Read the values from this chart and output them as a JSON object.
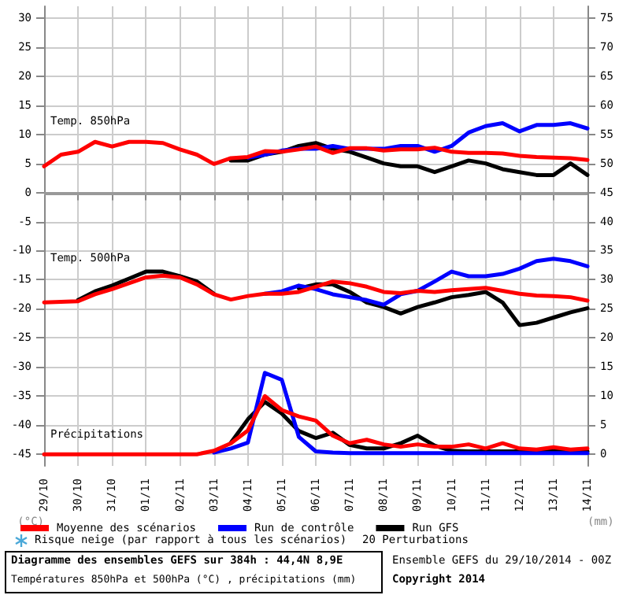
{
  "chart_data": {
    "type": "line",
    "title": "Diagramme des ensembles GEFS sur 384h : 44,4N 8,9E",
    "subtitle": "Températures 850hPa et 500hPa (°C) , précipitations (mm)",
    "ylabel": "(°C)",
    "y2label": "(mm)",
    "x": [
      "2014-10-29T00:00",
      "2014-10-29T12:00",
      "2014-10-30T00:00",
      "2014-10-30T12:00",
      "2014-10-31T00:00",
      "2014-10-31T12:00",
      "2014-11-01T00:00",
      "2014-11-01T12:00",
      "2014-11-02T00:00",
      "2014-11-02T12:00",
      "2014-11-03T00:00",
      "2014-11-03T12:00",
      "2014-11-04T00:00",
      "2014-11-04T12:00",
      "2014-11-05T00:00",
      "2014-11-05T12:00",
      "2014-11-06T00:00",
      "2014-11-06T12:00",
      "2014-11-07T00:00",
      "2014-11-07T12:00",
      "2014-11-08T00:00",
      "2014-11-08T12:00",
      "2014-11-09T00:00",
      "2014-11-09T12:00",
      "2014-11-10T00:00",
      "2014-11-10T12:00",
      "2014-11-11T00:00",
      "2014-11-11T12:00",
      "2014-11-12T00:00",
      "2014-11-12T12:00",
      "2014-11-13T00:00",
      "2014-11-13T12:00",
      "2014-11-14T00:00"
    ],
    "xlim": [
      "2014-10-29",
      "2014-11-14"
    ],
    "xticks": [
      {
        "value": "2014-10-29",
        "label": "29/10"
      },
      {
        "value": "2014-10-30",
        "label": "30/10"
      },
      {
        "value": "2014-10-31",
        "label": "31/10"
      },
      {
        "value": "2014-11-01",
        "label": "01/11"
      },
      {
        "value": "2014-11-02",
        "label": "02/11"
      },
      {
        "value": "2014-11-03",
        "label": "03/11"
      },
      {
        "value": "2014-11-04",
        "label": "04/11"
      },
      {
        "value": "2014-11-05",
        "label": "05/11"
      },
      {
        "value": "2014-11-06",
        "label": "06/11"
      },
      {
        "value": "2014-11-07",
        "label": "07/11"
      },
      {
        "value": "2014-11-08",
        "label": "08/11"
      },
      {
        "value": "2014-11-09",
        "label": "09/11"
      },
      {
        "value": "2014-11-10",
        "label": "10/11"
      },
      {
        "value": "2014-11-11",
        "label": "11/11"
      },
      {
        "value": "2014-11-12",
        "label": "12/11"
      },
      {
        "value": "2014-11-13",
        "label": "13/11"
      },
      {
        "value": "2014-11-14",
        "label": "14/11"
      }
    ],
    "ylim": [
      -47,
      32
    ],
    "yticks": [
      -45,
      -40,
      -35,
      -30,
      -25,
      -20,
      -15,
      -10,
      -5,
      0,
      5,
      10,
      15,
      20,
      25,
      30
    ],
    "y2lim": [
      -2,
      77
    ],
    "y2ticks": [
      0,
      5,
      10,
      15,
      20,
      25,
      30,
      35,
      40,
      45,
      50,
      55,
      60,
      65,
      70,
      75
    ],
    "grid": true,
    "marker": "none",
    "legend": "bottom left",
    "ref_lines": [
      {
        "axis": "y",
        "value": 0,
        "color": "#999999"
      }
    ],
    "series": [
      {
        "name": "Moyenne des scénarios",
        "color": "#ff0000",
        "values": [
          4.5,
          6.5,
          7,
          8.7,
          7.9,
          8.7,
          8.7,
          8.5,
          7.4,
          6.5,
          4.9,
          5.9,
          6.1,
          7.1,
          7,
          7.4,
          7.9,
          6.8,
          7.6,
          7.6,
          7.2,
          7.4,
          7.4,
          7.7,
          7,
          6.8,
          6.8,
          6.7,
          6.3,
          6.1,
          6,
          5.9,
          5.6
        ]
      },
      {
        "name": "Run de contrôle",
        "color": "#0000ff",
        "values": [
          null,
          null,
          null,
          null,
          null,
          null,
          null,
          null,
          null,
          null,
          null,
          null,
          6,
          6.5,
          7.2,
          7.5,
          7.5,
          8,
          7.5,
          7.5,
          7.5,
          8,
          8,
          7,
          8,
          10.3,
          11.4,
          11.9,
          10.5,
          11.6,
          11.6,
          11.9,
          11
        ]
      },
      {
        "name": "Run GFS",
        "color": "#000000",
        "values": [
          null,
          null,
          null,
          null,
          null,
          null,
          null,
          null,
          null,
          null,
          null,
          5.5,
          5.5,
          6.5,
          7,
          8,
          8.5,
          7.5,
          7,
          6,
          5,
          4.5,
          4.5,
          3.5,
          4.5,
          5.5,
          5,
          4,
          3.5,
          3,
          3,
          5,
          3
        ]
      },
      {
        "color": "#ff0000",
        "values": [
          -18.9,
          -18.8,
          -18.7,
          -17.5,
          -16.6,
          -15.6,
          -14.6,
          -14.3,
          -14.6,
          -15.8,
          -17.5,
          -18.4,
          -17.8,
          -17.4,
          -17.4,
          -17.1,
          -16.2,
          -15.3,
          -15.6,
          -16.2,
          -17.1,
          -17.3,
          -16.9,
          -17.1,
          -16.8,
          -16.6,
          -16.4,
          -16.9,
          -17.4,
          -17.7,
          -17.8,
          -18,
          -18.6
        ]
      },
      {
        "color": "#0000ff",
        "values": [
          null,
          null,
          null,
          null,
          null,
          null,
          null,
          null,
          null,
          null,
          null,
          null,
          null,
          -17.4,
          -17,
          -16,
          -16.6,
          -17.5,
          -18,
          -18.5,
          -19.3,
          -17.5,
          -16.9,
          -15.3,
          -13.6,
          -14.4,
          -14.4,
          -14,
          -13.1,
          -11.8,
          -11.4,
          -11.8,
          -12.7
        ]
      },
      {
        "color": "#000000",
        "values": [
          null,
          null,
          -18.5,
          -17,
          -16,
          -14.8,
          -13.6,
          -13.6,
          -14.4,
          -15.3,
          -17.4,
          null,
          null,
          null,
          null,
          -16.5,
          -15.8,
          -15.8,
          -17.1,
          -18.9,
          -19.7,
          -20.8,
          -19.7,
          -18.9,
          -18,
          -17.6,
          -17.1,
          -18.9,
          -22.8,
          -22.4,
          -21.5,
          -20.6,
          -19.9
        ]
      },
      {
        "color": "#ff0000",
        "axis": "y2",
        "values": [
          0,
          0,
          0,
          0,
          0,
          0,
          0,
          0,
          0,
          0,
          0.6,
          1.9,
          4.1,
          10,
          7.6,
          6.5,
          5.8,
          3.2,
          1.9,
          2.5,
          1.7,
          1.3,
          1.7,
          1.3,
          1.3,
          1.7,
          1,
          1.9,
          1,
          0.8,
          1.2,
          0.8,
          1
        ]
      },
      {
        "color": "#0000ff",
        "axis": "y2",
        "values": [
          null,
          null,
          null,
          null,
          null,
          null,
          null,
          null,
          null,
          null,
          0.3,
          1,
          2,
          14,
          12.8,
          3,
          0.5,
          0.3,
          0.2,
          0.2,
          0.2,
          0.2,
          0.2,
          0.2,
          0.2,
          0.2,
          0.2,
          0.2,
          0.2,
          0.2,
          0.2,
          0.2,
          0.2
        ]
      },
      {
        "color": "#000000",
        "axis": "y2",
        "values": [
          null,
          null,
          null,
          null,
          null,
          null,
          null,
          null,
          null,
          null,
          null,
          2,
          6,
          9,
          7,
          4,
          2.8,
          3.7,
          1.6,
          1,
          1,
          1.9,
          3.2,
          1.5,
          0.6,
          0.5,
          0.5,
          0.5,
          0.5,
          0.5,
          0.5,
          0.5,
          0.5
        ]
      }
    ],
    "annotations": [
      "Temp. 850hPa",
      "Temp. 500hPa",
      "Précipitations",
      "Risque neige (par rapport à tous les scénarios)",
      "20 Perturbations",
      "Ensemble GEFS du 29/10/2014 - 00Z",
      "Copyright 2014"
    ]
  }
}
